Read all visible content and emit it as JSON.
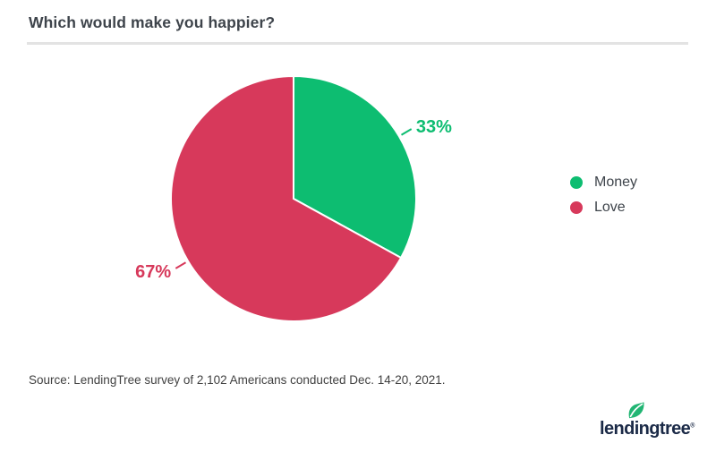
{
  "header": {
    "title": "Which would make you happier?"
  },
  "footer": {
    "source": "Source: LendingTree survey of 2,102 Americans conducted Dec. 14-20, 2021.",
    "logo_text": "lendingtree",
    "logo_reg": "®"
  },
  "colors": {
    "money_green": "#0DBD71",
    "love_red": "#D7395B",
    "text_dark": "#3E444B",
    "source_text": "#404040",
    "logo_navy": "#1B2A47",
    "leaf_green": "#21B573",
    "divider_gray": "#E3E3E3"
  },
  "chart_data": {
    "type": "pie",
    "title": "Which would make you happier?",
    "series": [
      {
        "name": "Money",
        "value": 33,
        "label": "33%",
        "color": "#0DBD71"
      },
      {
        "name": "Love",
        "value": 67,
        "label": "67%",
        "color": "#D7395B"
      }
    ],
    "start_angle_deg": 0,
    "direction": "clockwise",
    "legend_position": "right",
    "grid": false,
    "source": "Source: LendingTree survey of 2,102 Americans conducted Dec. 14-20, 2021."
  }
}
